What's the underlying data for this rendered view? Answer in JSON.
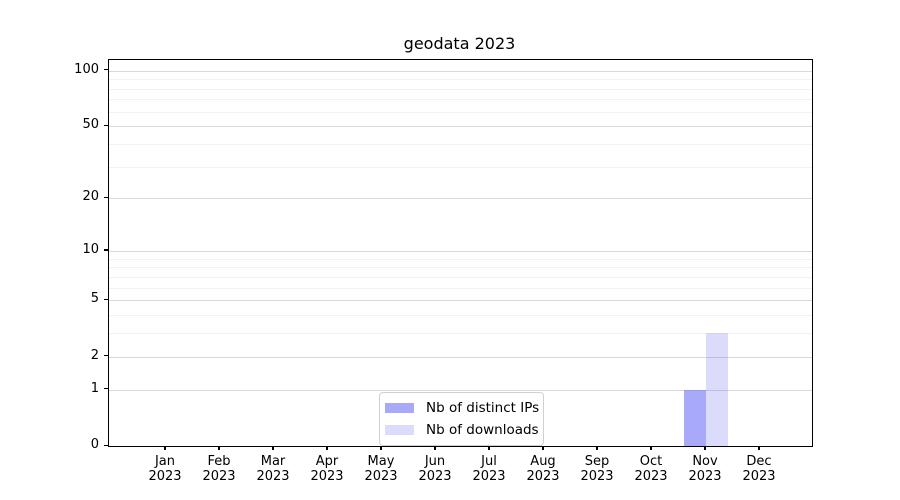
{
  "figure": {
    "title": "geodata 2023",
    "background": "#ffffff"
  },
  "chart_data": {
    "type": "bar",
    "title": "geodata 2023",
    "categories": [
      "Jan",
      "Feb",
      "Mar",
      "Apr",
      "May",
      "Jun",
      "Jul",
      "Aug",
      "Sep",
      "Oct",
      "Nov",
      "Dec"
    ],
    "category_year": "2023",
    "series": [
      {
        "name": "Nb of distinct IPs",
        "color": "rgba(98,98,244,0.55)",
        "color_hex_on_white": "#aaaaf8",
        "values": [
          0,
          0,
          0,
          0,
          0,
          0,
          0,
          0,
          0,
          0,
          1,
          0
        ]
      },
      {
        "name": "Nb of downloads",
        "color": "rgba(98,98,244,0.23)",
        "color_hex_on_white": "#dbdbf8",
        "values": [
          0,
          0,
          0,
          0,
          0,
          0,
          0,
          0,
          0,
          0,
          3,
          0
        ]
      }
    ],
    "xlabel": "",
    "ylabel": "",
    "y_axis": {
      "scale": "log1p",
      "major_ticks": [
        0,
        1,
        2,
        5,
        10,
        20,
        50,
        100
      ],
      "minor_ticks": [
        3,
        4,
        6,
        7,
        8,
        9,
        30,
        40,
        60,
        70,
        80,
        90
      ],
      "max": 114
    },
    "grid": "horizontal major+minor",
    "legend": {
      "position": "lower center",
      "entries": [
        "Nb of distinct IPs",
        "Nb of downloads"
      ]
    },
    "colors": {
      "major_grid": "#d9d9d9",
      "minor_grid": "#f2f2f2",
      "spine": "#000000",
      "text": "#000000"
    }
  }
}
